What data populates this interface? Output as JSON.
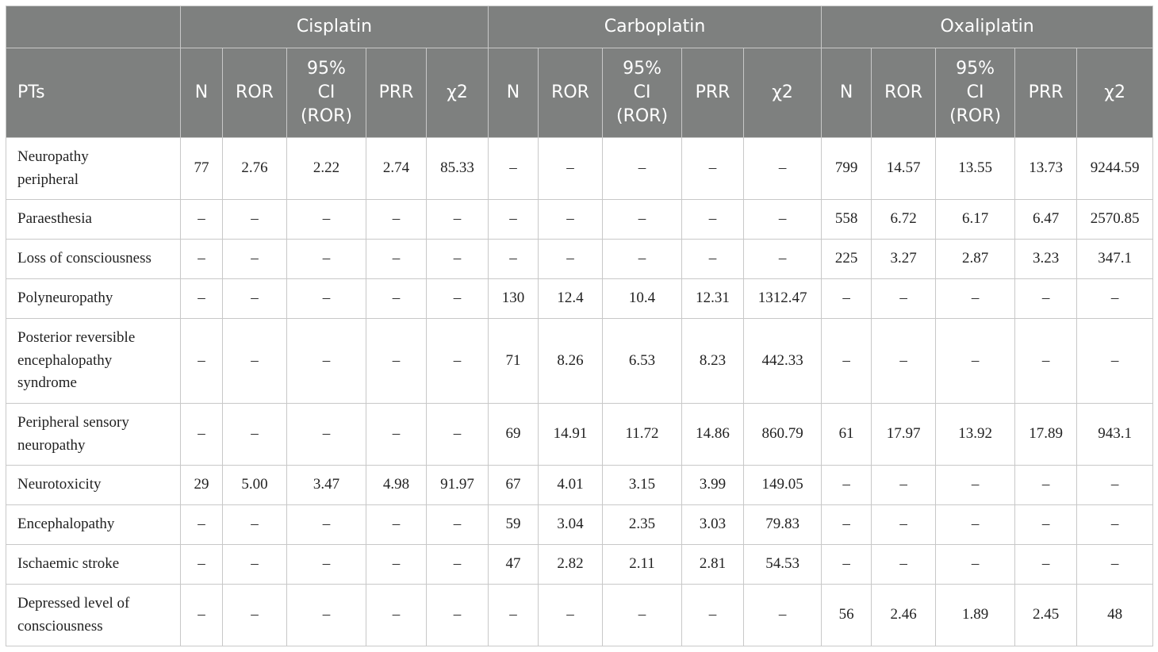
{
  "groups": [
    "Cisplatin",
    "Carboplatin",
    "Oxaliplatin"
  ],
  "pt_header": "PTs",
  "columns": [
    "N",
    "ROR",
    "95% CI (ROR)",
    "PRR",
    "χ2"
  ],
  "ci_header_lines": [
    "95%",
    "CI",
    "(ROR)"
  ],
  "rows": [
    {
      "pt": "Neuropathy peripheral",
      "pt_lines": [
        "Neuropathy",
        "peripheral"
      ],
      "values": [
        "77",
        "2.76",
        "2.22",
        "2.74",
        "85.33",
        "–",
        "–",
        "–",
        "–",
        "–",
        "799",
        "14.57",
        "13.55",
        "13.73",
        "9244.59"
      ]
    },
    {
      "pt": "Paraesthesia",
      "pt_lines": [
        "Paraesthesia"
      ],
      "values": [
        "–",
        "–",
        "–",
        "–",
        "–",
        "–",
        "–",
        "–",
        "–",
        "–",
        "558",
        "6.72",
        "6.17",
        "6.47",
        "2570.85"
      ]
    },
    {
      "pt": "Loss of consciousness",
      "pt_lines": [
        "Loss of consciousness"
      ],
      "values": [
        "–",
        "–",
        "–",
        "–",
        "–",
        "–",
        "–",
        "–",
        "–",
        "–",
        "225",
        "3.27",
        "2.87",
        "3.23",
        "347.1"
      ]
    },
    {
      "pt": "Polyneuropathy",
      "pt_lines": [
        "Polyneuropathy"
      ],
      "values": [
        "–",
        "–",
        "–",
        "–",
        "–",
        "130",
        "12.4",
        "10.4",
        "12.31",
        "1312.47",
        "–",
        "–",
        "–",
        "–",
        "–"
      ]
    },
    {
      "pt": "Posterior reversible encephalopathy syndrome",
      "pt_lines": [
        "Posterior reversible",
        "encephalopathy",
        "syndrome"
      ],
      "values": [
        "–",
        "–",
        "–",
        "–",
        "–",
        "71",
        "8.26",
        "6.53",
        "8.23",
        "442.33",
        "–",
        "–",
        "–",
        "–",
        "–"
      ]
    },
    {
      "pt": "Peripheral sensory neuropathy",
      "pt_lines": [
        "Peripheral sensory",
        "neuropathy"
      ],
      "values": [
        "–",
        "–",
        "–",
        "–",
        "–",
        "69",
        "14.91",
        "11.72",
        "14.86",
        "860.79",
        "61",
        "17.97",
        "13.92",
        "17.89",
        "943.1"
      ]
    },
    {
      "pt": "Neurotoxicity",
      "pt_lines": [
        "Neurotoxicity"
      ],
      "values": [
        "29",
        "5.00",
        "3.47",
        "4.98",
        "91.97",
        "67",
        "4.01",
        "3.15",
        "3.99",
        "149.05",
        "–",
        "–",
        "–",
        "–",
        "–"
      ]
    },
    {
      "pt": "Encephalopathy",
      "pt_lines": [
        "Encephalopathy"
      ],
      "values": [
        "–",
        "–",
        "–",
        "–",
        "–",
        "59",
        "3.04",
        "2.35",
        "3.03",
        "79.83",
        "–",
        "–",
        "–",
        "–",
        "–"
      ]
    },
    {
      "pt": "Ischaemic stroke",
      "pt_lines": [
        "Ischaemic stroke"
      ],
      "values": [
        "–",
        "–",
        "–",
        "–",
        "–",
        "47",
        "2.82",
        "2.11",
        "2.81",
        "54.53",
        "–",
        "–",
        "–",
        "–",
        "–"
      ]
    },
    {
      "pt": "Depressed level of consciousness",
      "pt_lines": [
        "Depressed level of",
        "consciousness"
      ],
      "values": [
        "–",
        "–",
        "–",
        "–",
        "–",
        "–",
        "–",
        "–",
        "–",
        "–",
        "56",
        "2.46",
        "1.89",
        "2.45",
        "48"
      ]
    }
  ],
  "colors": {
    "header_bg": "#7e807f",
    "header_text": "#ffffff",
    "border": "#c8c8c8",
    "body_text": "#222222"
  }
}
